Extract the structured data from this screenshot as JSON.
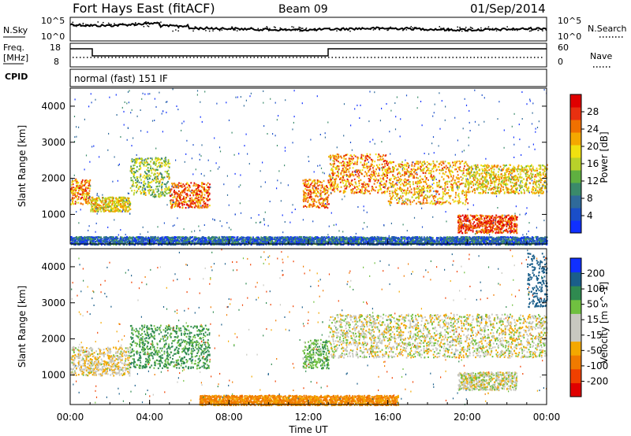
{
  "header": {
    "station": "Fort Hays East (fitACF)",
    "beam": "Beam 09",
    "date": "01/Sep/2014"
  },
  "noise_panel": {
    "left_label": "N.Sky",
    "left_ticks": [
      "10^5",
      "10^0"
    ],
    "right_ticks": [
      "10^5",
      "10^0"
    ],
    "right_label": "N.Search"
  },
  "freq_panel": {
    "left_label_1": "Freq.",
    "left_label_2": "[MHz]",
    "left_ticks": [
      "18",
      "8"
    ],
    "right_ticks": [
      "60",
      "0"
    ],
    "right_label": "Nave"
  },
  "cpid_panel": {
    "label": "CPID",
    "mode_text": "normal (fast) 151 IF"
  },
  "x_axis": {
    "ticks": [
      "00:00",
      "04:00",
      "08:00",
      "12:00",
      "16:00",
      "20:00",
      "00:00"
    ],
    "label": "Time UT"
  },
  "colors": {
    "power": [
      "#1030ff",
      "#1a4ec8",
      "#2f6a9a",
      "#3a8a6a",
      "#5fb040",
      "#b8d12a",
      "#f0e010",
      "#f4a800",
      "#f07000",
      "#e83010",
      "#e00000"
    ],
    "velocity": [
      "#e00000",
      "#f04000",
      "#f07a00",
      "#f4a800",
      "#c8c8c0",
      "#c8c8c0",
      "#70c040",
      "#2f8a50",
      "#1a5e8a",
      "#1030ff"
    ]
  },
  "chart_data": [
    {
      "type": "heatmap",
      "title": "Power",
      "xlabel": "",
      "ylabel": "Slant Range [km]",
      "xlim": [
        "00:00",
        "24:00"
      ],
      "ylim": [
        180,
        4500
      ],
      "y_ticks": [
        "1000",
        "2000",
        "3000",
        "4000"
      ],
      "colorbar_label": "Power [dB]",
      "colorbar_ticks": [
        "4",
        "8",
        "12",
        "16",
        "20",
        "24",
        "28"
      ],
      "colorbar_range": [
        0,
        30
      ],
      "scatter_bands": [
        {
          "t_start": 0.0,
          "t_end": 1.0,
          "range_km": [
            1300,
            2000
          ],
          "value_db": 22
        },
        {
          "t_start": 1.0,
          "t_end": 3.0,
          "range_km": [
            1100,
            1500
          ],
          "value_db": 18
        },
        {
          "t_start": 3.0,
          "t_end": 5.0,
          "range_km": [
            1500,
            2600
          ],
          "value_db": 14
        },
        {
          "t_start": 5.0,
          "t_end": 7.0,
          "range_km": [
            1200,
            1900
          ],
          "value_db": 24
        },
        {
          "t_start": 11.7,
          "t_end": 13.0,
          "range_km": [
            1200,
            2000
          ],
          "value_db": 22
        },
        {
          "t_start": 13.0,
          "t_end": 16.0,
          "range_km": [
            1600,
            2700
          ],
          "value_db": 22
        },
        {
          "t_start": 16.0,
          "t_end": 20.0,
          "range_km": [
            1300,
            2500
          ],
          "value_db": 20
        },
        {
          "t_start": 20.0,
          "t_end": 24.0,
          "range_km": [
            1600,
            2400
          ],
          "value_db": 18
        },
        {
          "t_start": 19.5,
          "t_end": 22.5,
          "range_km": [
            500,
            1000
          ],
          "value_db": 26
        },
        {
          "t_start": 0.0,
          "t_end": 24.0,
          "range_km": [
            180,
            400
          ],
          "value_db": 6
        }
      ]
    },
    {
      "type": "heatmap",
      "title": "Velocity",
      "xlabel": "Time UT",
      "ylabel": "Slant Range [km]",
      "xlim": [
        "00:00",
        "24:00"
      ],
      "ylim": [
        180,
        4500
      ],
      "y_ticks": [
        "1000",
        "2000",
        "3000",
        "4000"
      ],
      "colorbar_label": "Velocity [m s^-1]",
      "colorbar_ticks": [
        "-200",
        "-100",
        "-50",
        "-15",
        "15",
        "50",
        "100",
        "200"
      ],
      "colorbar_range": [
        -250,
        250
      ],
      "scatter_bands": [
        {
          "t_start": 0.0,
          "t_end": 3.0,
          "range_km": [
            1000,
            1800
          ],
          "value_ms": -10
        },
        {
          "t_start": 3.0,
          "t_end": 7.0,
          "range_km": [
            1200,
            2400
          ],
          "value_ms": 60
        },
        {
          "t_start": 11.7,
          "t_end": 13.0,
          "range_km": [
            1200,
            2000
          ],
          "value_ms": 40
        },
        {
          "t_start": 13.0,
          "t_end": 24.0,
          "range_km": [
            1500,
            2700
          ],
          "value_ms": 0
        },
        {
          "t_start": 19.5,
          "t_end": 22.5,
          "range_km": [
            600,
            1100
          ],
          "value_ms": 0
        },
        {
          "t_start": 6.5,
          "t_end": 16.5,
          "range_km": [
            180,
            450
          ],
          "value_ms": -60
        },
        {
          "t_start": 23.0,
          "t_end": 24.0,
          "range_km": [
            2900,
            4400
          ],
          "value_ms": 150
        }
      ]
    }
  ]
}
